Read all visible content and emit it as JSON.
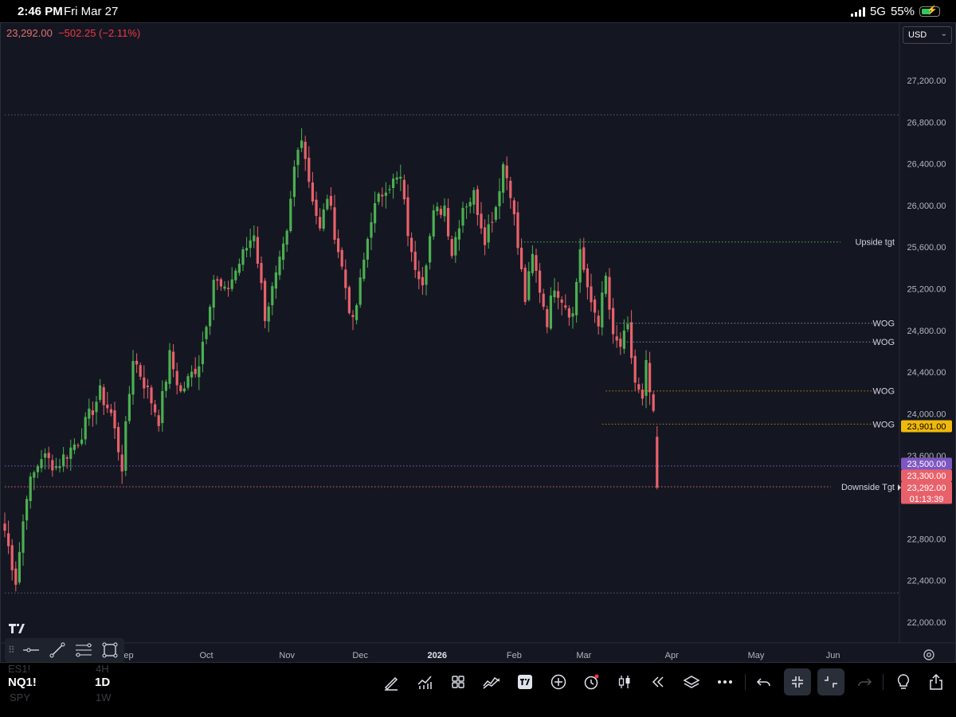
{
  "status_bar": {
    "time": "2:46 PM",
    "date": "Fri Mar 27",
    "network": "5G",
    "battery": "55%",
    "battery_level": 0.55,
    "icons": [
      "signal-icon",
      "battery-charging-icon"
    ]
  },
  "chart_header": {
    "last_price": "23,292.00",
    "change": "−502.25 (−2.11%)"
  },
  "currency": "USD",
  "colors": {
    "background": "#141722",
    "up": "#4caf50",
    "down": "#e8616a",
    "purple_line": "#7e57c2",
    "red_line": "#e8616a",
    "gold": "#f0b90b"
  },
  "chart_data": {
    "type": "candlestick",
    "symbol": "NQ1!",
    "timeframe": "1D",
    "ylim": [
      21880,
      27550
    ],
    "y_ticks": [
      {
        "value": 27200,
        "label": "27,200.00"
      },
      {
        "value": 26800,
        "label": "26,800.00"
      },
      {
        "value": 26400,
        "label": "26,400.00"
      },
      {
        "value": 26000,
        "label": "26,000.00"
      },
      {
        "value": 25600,
        "label": "25,600.00"
      },
      {
        "value": 25200,
        "label": "25,200.00"
      },
      {
        "value": 24800,
        "label": "24,800.00"
      },
      {
        "value": 24400,
        "label": "24,400.00"
      },
      {
        "value": 24000,
        "label": "24,000.00"
      },
      {
        "value": 23600,
        "label": "23,600.00"
      },
      {
        "value": 22800,
        "label": "22,800.00"
      },
      {
        "value": 22400,
        "label": "22,400.00"
      },
      {
        "value": 22000,
        "label": "22,000.00"
      }
    ],
    "x_ticks": [
      {
        "label": "Sep",
        "bar": 33
      },
      {
        "label": "Oct",
        "bar": 55
      },
      {
        "label": "Nov",
        "bar": 77
      },
      {
        "label": "Dec",
        "bar": 97
      },
      {
        "label": "2026",
        "bar": 118,
        "bold": true
      },
      {
        "label": "Feb",
        "bar": 139
      },
      {
        "label": "Mar",
        "bar": 158
      },
      {
        "label": "Apr",
        "bar": 182
      },
      {
        "label": "May",
        "bar": 205
      },
      {
        "label": "Jun",
        "bar": 226
      }
    ],
    "bars_total": 240,
    "anchors": [
      [
        0,
        22880
      ],
      [
        3,
        22400
      ],
      [
        6,
        23250
      ],
      [
        10,
        23600
      ],
      [
        14,
        23500
      ],
      [
        20,
        23750
      ],
      [
        26,
        24200
      ],
      [
        29,
        24000
      ],
      [
        32,
        23500
      ],
      [
        35,
        24550
      ],
      [
        38,
        24300
      ],
      [
        42,
        23950
      ],
      [
        45,
        24550
      ],
      [
        48,
        24200
      ],
      [
        53,
        24500
      ],
      [
        57,
        25300
      ],
      [
        60,
        25150
      ],
      [
        64,
        25450
      ],
      [
        68,
        25750
      ],
      [
        71,
        24950
      ],
      [
        74,
        25300
      ],
      [
        77,
        25700
      ],
      [
        79,
        26350
      ],
      [
        81,
        26700
      ],
      [
        83,
        26250
      ],
      [
        86,
        25750
      ],
      [
        88,
        26100
      ],
      [
        92,
        25400
      ],
      [
        95,
        24850
      ],
      [
        97,
        25250
      ],
      [
        100,
        25900
      ],
      [
        104,
        26200
      ],
      [
        108,
        26250
      ],
      [
        111,
        25500
      ],
      [
        114,
        25300
      ],
      [
        117,
        25900
      ],
      [
        120,
        26000
      ],
      [
        122,
        25550
      ],
      [
        125,
        26000
      ],
      [
        128,
        26100
      ],
      [
        131,
        25700
      ],
      [
        134,
        26000
      ],
      [
        136,
        26400
      ],
      [
        138,
        26150
      ],
      [
        140,
        25600
      ],
      [
        142,
        25100
      ],
      [
        144,
        25500
      ],
      [
        146,
        25200
      ],
      [
        148,
        24900
      ],
      [
        150,
        25250
      ],
      [
        153,
        25050
      ],
      [
        155,
        24950
      ],
      [
        157,
        25600
      ],
      [
        159,
        25150
      ],
      [
        162,
        24900
      ],
      [
        164,
        25300
      ],
      [
        166,
        24700
      ],
      [
        168,
        24650
      ],
      [
        170,
        24800
      ],
      [
        172,
        24300
      ],
      [
        174,
        24100
      ],
      [
        175,
        24450
      ],
      [
        177,
        23950
      ],
      [
        178,
        23292
      ]
    ],
    "horizontal_lines": [
      {
        "price": 26870,
        "color": "#5d606b",
        "start_bar": 0,
        "label": ""
      },
      {
        "price": 25650,
        "color": "#4caf50",
        "start_bar": 140,
        "label": "Upside tgt"
      },
      {
        "price": 24870,
        "color": "#8a8d96",
        "start_bar": 166,
        "label": "WOG"
      },
      {
        "price": 24690,
        "color": "#8a8d96",
        "start_bar": 168,
        "label": "WOG"
      },
      {
        "price": 24220,
        "color": "#b8860b",
        "start_bar": 164,
        "label": "WOG"
      },
      {
        "price": 23901,
        "color": "#b8860b",
        "start_bar": 163,
        "label": "WOG"
      },
      {
        "price": 23500,
        "color": "#7e57c2",
        "start_bar": 0,
        "label": ""
      },
      {
        "price": 23300,
        "color": "#e8616a",
        "start_bar": 0,
        "label": "Downside Tgt"
      },
      {
        "price": 22280,
        "color": "#5d606b",
        "start_bar": 0,
        "label": ""
      }
    ],
    "price_tags": [
      {
        "price": 23901,
        "label": "23,901.00",
        "bg": "#f0b90b",
        "fg": "#000000"
      },
      {
        "price": 23500,
        "label": "23,500.00",
        "bg": "#7e57c2",
        "fg": "#ffffff"
      },
      {
        "price": 23300,
        "label": "23,300.00",
        "bg": "#e8616a",
        "fg": "#ffffff"
      },
      {
        "price": 23292,
        "label": "23,292.00",
        "sub": "01:13:39",
        "bg": "#e8616a",
        "fg": "#ffffff"
      }
    ]
  },
  "drawing_toolbar": {
    "tools": [
      "horizontal-line-icon",
      "trend-line-icon",
      "fib-retracement-icon",
      "rectangle-icon"
    ]
  },
  "bottom_bar": {
    "symbol_prev": "ES1!",
    "symbol": "NQ1!",
    "symbol_next": "SPY",
    "timeframe_prev": "4H",
    "timeframe": "1D",
    "timeframe_next": "1W"
  }
}
